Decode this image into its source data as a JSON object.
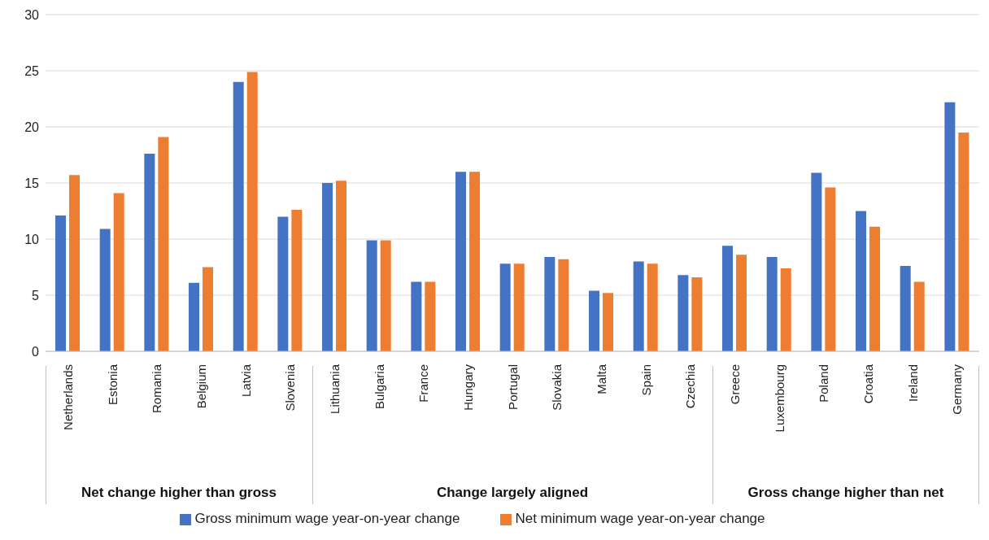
{
  "chart_data": {
    "type": "bar",
    "categories": [
      "Netherlands",
      "Estonia",
      "Romania",
      "Belgium",
      "Latvia",
      "Slovenia",
      "Lithuania",
      "Bulgaria",
      "France",
      "Hungary",
      "Portugal",
      "Slovakia",
      "Malta",
      "Spain",
      "Czechia",
      "Greece",
      "Luxembourg",
      "Poland",
      "Croatia",
      "Ireland",
      "Germany"
    ],
    "series": [
      {
        "name": "Gross minimum wage year-on-year change",
        "color": "#4472c4",
        "values": [
          12.1,
          10.9,
          17.6,
          6.1,
          24.0,
          12.0,
          15.0,
          9.9,
          6.2,
          16.0,
          7.8,
          8.4,
          5.4,
          8.0,
          6.8,
          9.4,
          8.4,
          15.9,
          12.5,
          7.6,
          22.2
        ]
      },
      {
        "name": "Net minimum wage year-on-year change",
        "color": "#ed7d31",
        "values": [
          15.7,
          14.1,
          19.1,
          7.5,
          24.9,
          12.6,
          15.2,
          9.9,
          6.2,
          16.0,
          7.8,
          8.2,
          5.2,
          7.8,
          6.6,
          8.6,
          7.4,
          14.6,
          11.1,
          6.2,
          19.5
        ]
      }
    ],
    "annotations": [
      "Net change higher than gross",
      "Change largely aligned",
      "Gross change higher than net"
    ],
    "ylim": [
      0,
      30
    ],
    "yticks": [
      0,
      5,
      10,
      15,
      20,
      25,
      30
    ],
    "grid": "y",
    "legend": "bottom"
  }
}
